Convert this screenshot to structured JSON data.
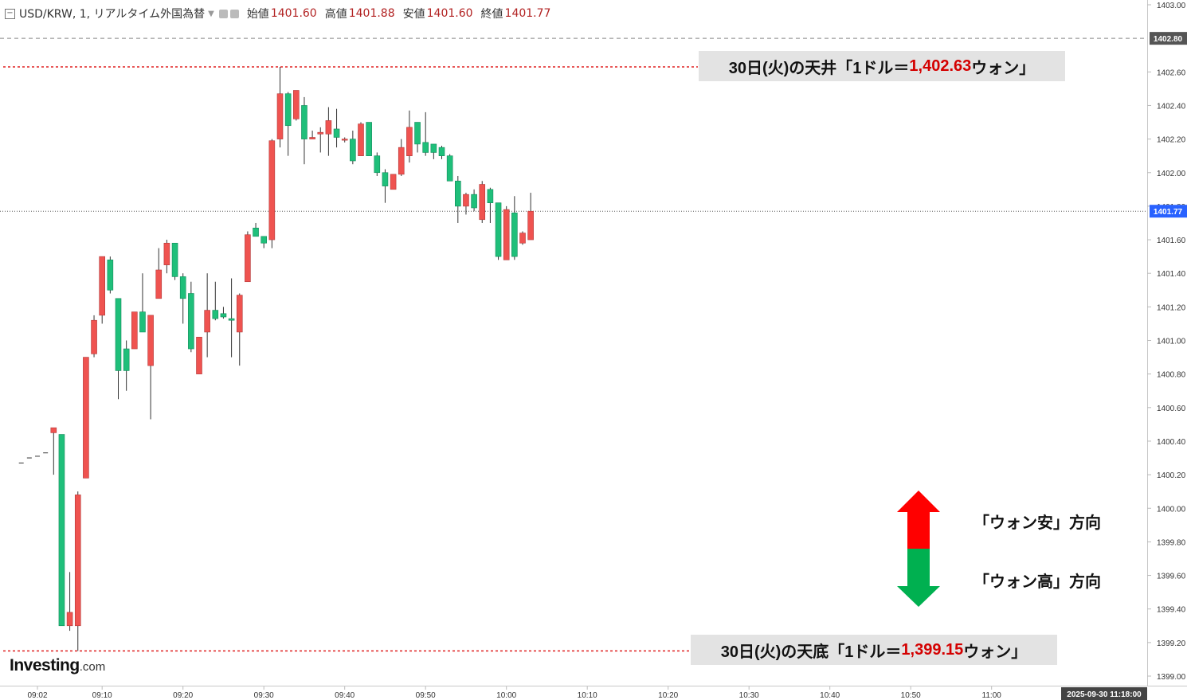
{
  "header": {
    "symbol": "USD/KRW, 1, リアルタイム外国為替",
    "open_label": "始値",
    "open": "1401.60",
    "high_label": "高値",
    "high": "1401.88",
    "low_label": "安値",
    "low": "1401.60",
    "close_label": "終値",
    "close": "1401.77"
  },
  "annotations": {
    "top_prefix": "30日(火)の天井「1ドル＝",
    "top_value": "1,402.63",
    "top_suffix": "ウォン」",
    "bottom_prefix": "30日(火)の天底「1ドル＝",
    "bottom_value": "1,399.15",
    "bottom_suffix": "ウォン」",
    "up_label": "「ウォン安」方向",
    "down_label": "「ウォン高」方向"
  },
  "logo": {
    "main": "Investing",
    "suffix": ".com"
  },
  "price_tag": "1401.77",
  "crosshair_price": "1402.80",
  "time_tag": "2025-09-30 11:18:00",
  "colors": {
    "up": "#ef5350",
    "down": "#26a69a",
    "down_fill": "#1fbf7a",
    "up_arrow": "#ff0000",
    "down_arrow": "#00b050",
    "tag": "#2962ff"
  },
  "chart_data": {
    "type": "candlestick",
    "ylim": [
      1399.0,
      1403.0
    ],
    "yticks": [
      1403.0,
      1402.6,
      1402.4,
      1402.2,
      1402.0,
      1401.8,
      1401.6,
      1401.4,
      1401.2,
      1401.0,
      1400.8,
      1400.6,
      1400.4,
      1400.2,
      1400.0,
      1399.8,
      1399.6,
      1399.4,
      1399.2,
      1399.0
    ],
    "xtick_labels": [
      "09:02",
      "09:10",
      "09:20",
      "09:30",
      "09:40",
      "09:50",
      "10:00",
      "10:10",
      "10:20",
      "10:30",
      "10:40",
      "10:50",
      "11:00"
    ],
    "xtick_minutes": [
      2,
      10,
      20,
      30,
      40,
      50,
      60,
      70,
      80,
      90,
      100,
      110,
      120
    ],
    "ceiling": 1402.63,
    "floor": 1399.15,
    "last": 1401.77,
    "candles": [
      {
        "t": 0,
        "o": 1400.27,
        "h": 1400.27,
        "l": 1400.27,
        "c": 1400.27
      },
      {
        "t": 1,
        "o": 1400.3,
        "h": 1400.3,
        "l": 1400.3,
        "c": 1400.3
      },
      {
        "t": 2,
        "o": 1400.31,
        "h": 1400.31,
        "l": 1400.31,
        "c": 1400.31
      },
      {
        "t": 3,
        "o": 1400.33,
        "h": 1400.33,
        "l": 1400.33,
        "c": 1400.33
      },
      {
        "t": 4,
        "o": 1400.45,
        "h": 1400.47,
        "l": 1400.2,
        "c": 1400.48
      },
      {
        "t": 5,
        "o": 1400.44,
        "h": 1400.44,
        "l": 1399.3,
        "c": 1399.3
      },
      {
        "t": 6,
        "o": 1399.3,
        "h": 1399.62,
        "l": 1399.27,
        "c": 1399.38
      },
      {
        "t": 7,
        "o": 1399.3,
        "h": 1400.1,
        "l": 1399.15,
        "c": 1400.08
      },
      {
        "t": 8,
        "o": 1400.18,
        "h": 1400.9,
        "l": 1400.18,
        "c": 1400.9
      },
      {
        "t": 9,
        "o": 1400.92,
        "h": 1401.15,
        "l": 1400.9,
        "c": 1401.12
      },
      {
        "t": 10,
        "o": 1401.15,
        "h": 1401.5,
        "l": 1401.1,
        "c": 1401.5
      },
      {
        "t": 11,
        "o": 1401.48,
        "h": 1401.5,
        "l": 1401.28,
        "c": 1401.3
      },
      {
        "t": 12,
        "o": 1401.25,
        "h": 1401.25,
        "l": 1400.65,
        "c": 1400.82
      },
      {
        "t": 13,
        "o": 1400.95,
        "h": 1401.0,
        "l": 1400.7,
        "c": 1400.82
      },
      {
        "t": 14,
        "o": 1400.95,
        "h": 1401.17,
        "l": 1400.95,
        "c": 1401.17
      },
      {
        "t": 15,
        "o": 1401.17,
        "h": 1401.4,
        "l": 1401.05,
        "c": 1401.05
      },
      {
        "t": 16,
        "o": 1400.85,
        "h": 1401.15,
        "l": 1400.53,
        "c": 1401.15
      },
      {
        "t": 17,
        "o": 1401.25,
        "h": 1401.55,
        "l": 1401.25,
        "c": 1401.42
      },
      {
        "t": 18,
        "o": 1401.45,
        "h": 1401.6,
        "l": 1401.4,
        "c": 1401.58
      },
      {
        "t": 19,
        "o": 1401.58,
        "h": 1401.58,
        "l": 1401.36,
        "c": 1401.38
      },
      {
        "t": 20,
        "o": 1401.38,
        "h": 1401.4,
        "l": 1401.1,
        "c": 1401.25
      },
      {
        "t": 21,
        "o": 1401.28,
        "h": 1401.35,
        "l": 1400.93,
        "c": 1400.95
      },
      {
        "t": 22,
        "o": 1400.8,
        "h": 1401.02,
        "l": 1400.8,
        "c": 1401.02
      },
      {
        "t": 23,
        "o": 1401.05,
        "h": 1401.4,
        "l": 1400.9,
        "c": 1401.18
      },
      {
        "t": 24,
        "o": 1401.18,
        "h": 1401.35,
        "l": 1401.12,
        "c": 1401.13
      },
      {
        "t": 25,
        "o": 1401.16,
        "h": 1401.2,
        "l": 1401.13,
        "c": 1401.14
      },
      {
        "t": 26,
        "o": 1401.13,
        "h": 1401.37,
        "l": 1400.9,
        "c": 1401.12
      },
      {
        "t": 27,
        "o": 1401.05,
        "h": 1401.28,
        "l": 1400.85,
        "c": 1401.27
      },
      {
        "t": 28,
        "o": 1401.35,
        "h": 1401.65,
        "l": 1401.35,
        "c": 1401.63
      },
      {
        "t": 29,
        "o": 1401.67,
        "h": 1401.7,
        "l": 1401.62,
        "c": 1401.62
      },
      {
        "t": 30,
        "o": 1401.62,
        "h": 1401.62,
        "l": 1401.55,
        "c": 1401.58
      },
      {
        "t": 31,
        "o": 1401.6,
        "h": 1402.2,
        "l": 1401.55,
        "c": 1402.19
      },
      {
        "t": 32,
        "o": 1402.2,
        "h": 1402.63,
        "l": 1402.15,
        "c": 1402.47
      },
      {
        "t": 33,
        "o": 1402.47,
        "h": 1402.48,
        "l": 1402.1,
        "c": 1402.28
      },
      {
        "t": 34,
        "o": 1402.32,
        "h": 1402.49,
        "l": 1402.31,
        "c": 1402.49
      },
      {
        "t": 35,
        "o": 1402.4,
        "h": 1402.45,
        "l": 1402.05,
        "c": 1402.2
      },
      {
        "t": 36,
        "o": 1402.2,
        "h": 1402.25,
        "l": 1402.2,
        "c": 1402.21
      },
      {
        "t": 37,
        "o": 1402.23,
        "h": 1402.27,
        "l": 1402.12,
        "c": 1402.24
      },
      {
        "t": 38,
        "o": 1402.23,
        "h": 1402.39,
        "l": 1402.1,
        "c": 1402.31
      },
      {
        "t": 39,
        "o": 1402.26,
        "h": 1402.38,
        "l": 1402.15,
        "c": 1402.21
      },
      {
        "t": 40,
        "o": 1402.2,
        "h": 1402.21,
        "l": 1402.18,
        "c": 1402.2
      },
      {
        "t": 41,
        "o": 1402.2,
        "h": 1402.25,
        "l": 1402.05,
        "c": 1402.07
      },
      {
        "t": 42,
        "o": 1402.1,
        "h": 1402.3,
        "l": 1402.1,
        "c": 1402.29
      },
      {
        "t": 43,
        "o": 1402.3,
        "h": 1402.3,
        "l": 1402.1,
        "c": 1402.1
      },
      {
        "t": 44,
        "o": 1402.1,
        "h": 1402.12,
        "l": 1401.98,
        "c": 1402.0
      },
      {
        "t": 45,
        "o": 1402.0,
        "h": 1402.02,
        "l": 1401.82,
        "c": 1401.92
      },
      {
        "t": 46,
        "o": 1401.9,
        "h": 1401.99,
        "l": 1401.9,
        "c": 1401.99
      },
      {
        "t": 47,
        "o": 1401.99,
        "h": 1402.2,
        "l": 1401.98,
        "c": 1402.15
      },
      {
        "t": 48,
        "o": 1402.1,
        "h": 1402.37,
        "l": 1402.06,
        "c": 1402.27
      },
      {
        "t": 49,
        "o": 1402.3,
        "h": 1402.3,
        "l": 1402.12,
        "c": 1402.17
      },
      {
        "t": 50,
        "o": 1402.18,
        "h": 1402.36,
        "l": 1402.1,
        "c": 1402.12
      },
      {
        "t": 51,
        "o": 1402.17,
        "h": 1402.17,
        "l": 1402.08,
        "c": 1402.12
      },
      {
        "t": 52,
        "o": 1402.15,
        "h": 1402.16,
        "l": 1402.08,
        "c": 1402.1
      },
      {
        "t": 53,
        "o": 1402.1,
        "h": 1402.11,
        "l": 1401.95,
        "c": 1401.95
      },
      {
        "t": 54,
        "o": 1401.95,
        "h": 1401.98,
        "l": 1401.7,
        "c": 1401.8
      },
      {
        "t": 55,
        "o": 1401.8,
        "h": 1401.88,
        "l": 1401.75,
        "c": 1401.87
      },
      {
        "t": 56,
        "o": 1401.87,
        "h": 1401.9,
        "l": 1401.77,
        "c": 1401.79
      },
      {
        "t": 57,
        "o": 1401.72,
        "h": 1401.95,
        "l": 1401.7,
        "c": 1401.93
      },
      {
        "t": 58,
        "o": 1401.9,
        "h": 1401.91,
        "l": 1401.7,
        "c": 1401.82
      },
      {
        "t": 59,
        "o": 1401.82,
        "h": 1401.82,
        "l": 1401.48,
        "c": 1401.5
      },
      {
        "t": 60,
        "o": 1401.48,
        "h": 1401.8,
        "l": 1401.48,
        "c": 1401.78
      },
      {
        "t": 61,
        "o": 1401.76,
        "h": 1401.86,
        "l": 1401.48,
        "c": 1401.5
      },
      {
        "t": 62,
        "o": 1401.58,
        "h": 1401.65,
        "l": 1401.57,
        "c": 1401.64
      },
      {
        "t": 63,
        "o": 1401.6,
        "h": 1401.88,
        "l": 1401.6,
        "c": 1401.77
      }
    ]
  }
}
